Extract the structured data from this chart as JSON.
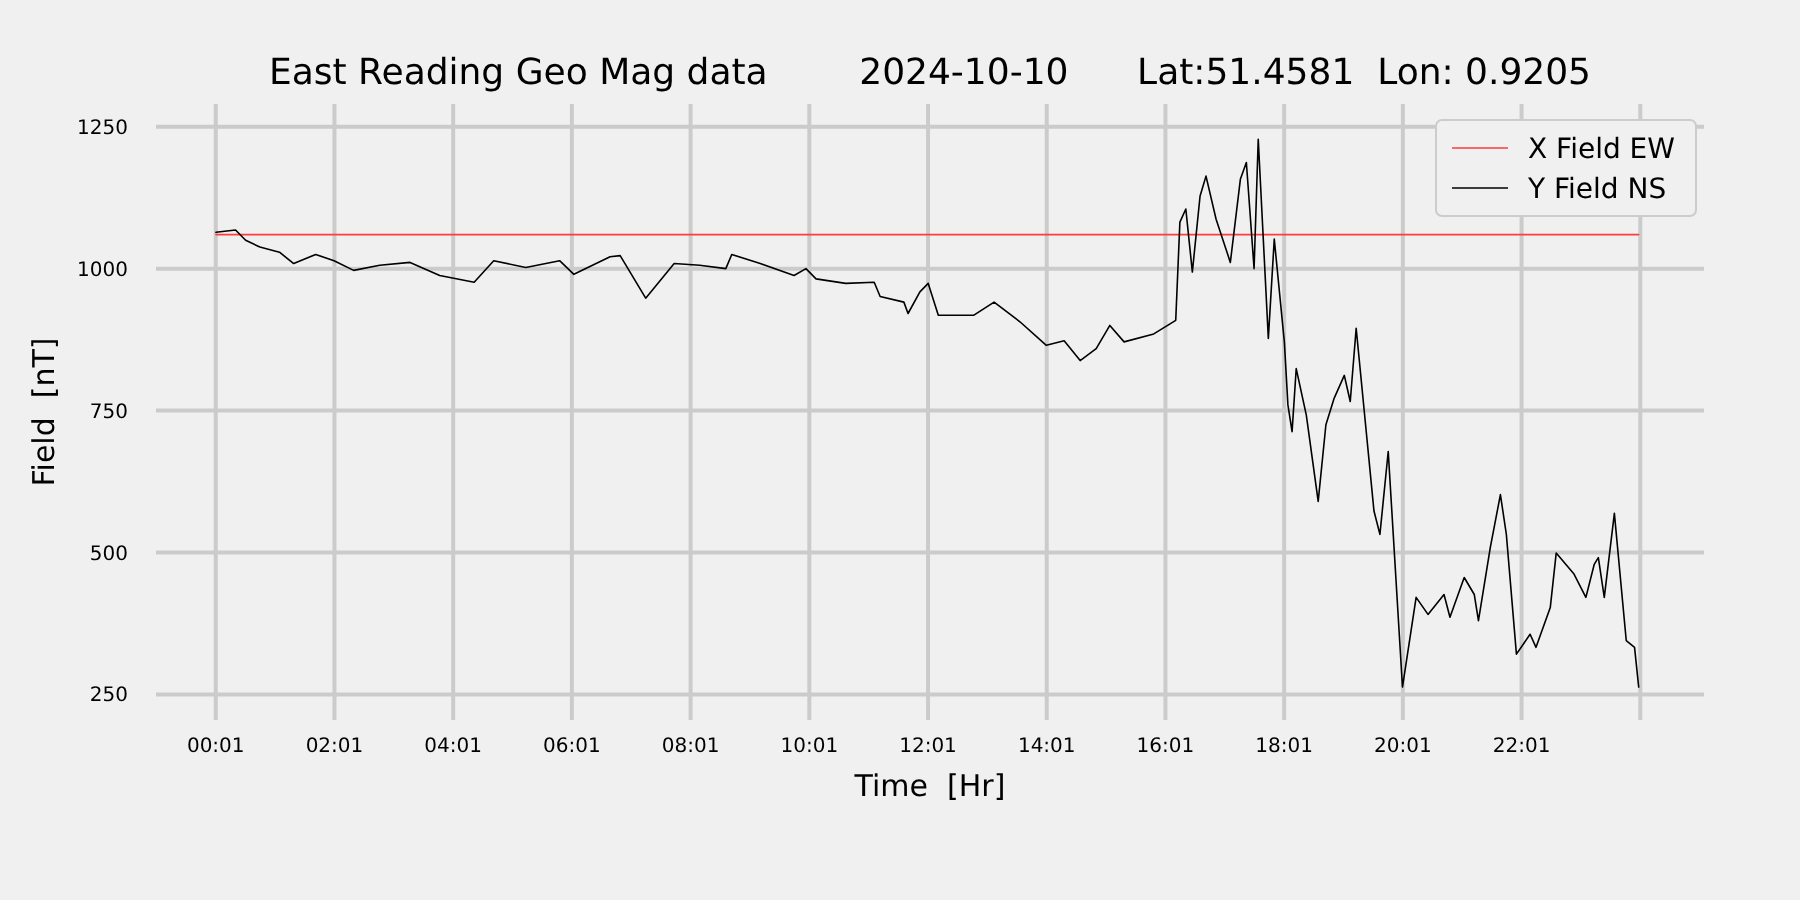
{
  "chart_data": {
    "type": "line",
    "title": "East Reading Geo Mag data        2024-10-10      Lat:51.4581  Lon: 0.9205",
    "xlabel": "Time  [Hr]",
    "ylabel": "Field  [nT]",
    "xlim": [
      -0.99,
      25.09
    ],
    "ylim": [
      205,
      1290
    ],
    "xticks": [
      {
        "value": 0.0167,
        "label": "00:01"
      },
      {
        "value": 2.0167,
        "label": "02:01"
      },
      {
        "value": 4.0167,
        "label": "04:01"
      },
      {
        "value": 6.0167,
        "label": "06:01"
      },
      {
        "value": 8.0167,
        "label": "08:01"
      },
      {
        "value": 10.0167,
        "label": "10:01"
      },
      {
        "value": 12.0167,
        "label": "12:01"
      },
      {
        "value": 14.0167,
        "label": "14:01"
      },
      {
        "value": 16.0167,
        "label": "16:01"
      },
      {
        "value": 18.0167,
        "label": "18:01"
      },
      {
        "value": 20.0167,
        "label": "20:01"
      },
      {
        "value": 22.0167,
        "label": "22:01"
      },
      {
        "value": 24.0167,
        "label": null
      }
    ],
    "yticks": [
      250,
      500,
      750,
      1000,
      1250
    ],
    "grid": true,
    "legend": "top right",
    "marker": "none",
    "line_style": "solid",
    "series": [
      {
        "name": "X Field EW",
        "color": "#ff3b3b",
        "x": [
          0.02,
          23.99
        ],
        "values": [
          1060,
          1060
        ]
      },
      {
        "name": "Y Field NS",
        "color": "#000000",
        "x": [
          0.02,
          0.35,
          0.52,
          0.76,
          1.09,
          1.33,
          1.7,
          2.01,
          2.34,
          2.78,
          3.29,
          3.79,
          4.37,
          4.7,
          5.24,
          5.81,
          6.05,
          6.66,
          6.83,
          7.26,
          7.74,
          8.17,
          8.61,
          8.71,
          9.19,
          9.76,
          9.96,
          10.13,
          10.63,
          11.11,
          11.21,
          11.61,
          11.68,
          11.88,
          12.02,
          12.19,
          12.79,
          13.13,
          13.57,
          14.01,
          14.31,
          14.58,
          14.85,
          15.08,
          15.32,
          15.82,
          16.19,
          16.26,
          16.36,
          16.47,
          16.6,
          16.7,
          16.87,
          17.11,
          17.28,
          17.38,
          17.51,
          17.58,
          17.75,
          17.85,
          18.02,
          18.08,
          18.15,
          18.22,
          18.39,
          18.59,
          18.72,
          18.86,
          19.03,
          19.13,
          19.23,
          19.53,
          19.63,
          19.77,
          20.01,
          20.24,
          20.44,
          20.71,
          20.81,
          21.05,
          21.22,
          21.29,
          21.49,
          21.66,
          21.76,
          21.93,
          22.16,
          22.26,
          22.5,
          22.6,
          22.9,
          23.1,
          23.24,
          23.31,
          23.41,
          23.58,
          23.78,
          23.92,
          23.99
        ],
        "values": [
          1064,
          1068,
          1050,
          1038,
          1029,
          1009,
          1025,
          1014,
          997,
          1006,
          1011,
          988,
          976,
          1014,
          1002,
          1014,
          990,
          1021,
          1023,
          948,
          1009,
          1006,
          1000,
          1025,
          1009,
          988,
          1000,
          982,
          974,
          976,
          951,
          941,
          921,
          959,
          974,
          918,
          918,
          941,
          906,
          865,
          873,
          838,
          859,
          900,
          871,
          885,
          909,
          1082,
          1105,
          994,
          1128,
          1163,
          1087,
          1011,
          1158,
          1187,
          1000,
          1228,
          877,
          1052,
          871,
          760,
          713,
          824,
          742,
          590,
          725,
          772,
          812,
          766,
          895,
          573,
          532,
          678,
          263,
          421,
          391,
          426,
          386,
          456,
          426,
          380,
          509,
          602,
          532,
          321,
          356,
          333,
          403,
          499,
          462,
          421,
          479,
          491,
          421,
          569,
          345,
          333,
          263
        ]
      }
    ]
  }
}
